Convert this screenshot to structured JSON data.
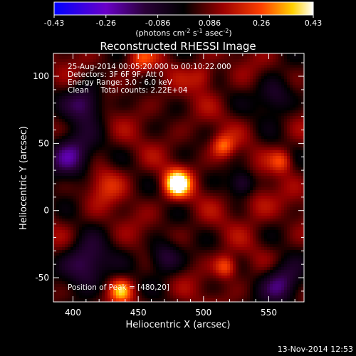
{
  "chart_data": {
    "type": "heatmap",
    "title": "Reconstructed RHESSI Image",
    "xlabel": "Heliocentric X (arcsec)",
    "ylabel": "Heliocentric Y (arcsec)",
    "xlim": [
      385,
      577
    ],
    "ylim": [
      -68,
      117
    ],
    "x_ticks": [
      400,
      450,
      500,
      550
    ],
    "y_ticks": [
      -50,
      0,
      50,
      100
    ],
    "colorbar": {
      "min": -0.43,
      "max": 0.43,
      "ticks": [
        "-0.43",
        "-0.26",
        "-0.086",
        "0.086",
        "0.26",
        "0.43"
      ],
      "label_parts": [
        "(photons cm",
        "-2",
        " s",
        "-1",
        " asec",
        "-2",
        ")"
      ]
    },
    "info_lines": [
      "25-Aug-2014 00:05:20.000 to 00:10:22.000",
      "Detectors: 3F 6F 9F, Att 0",
      "Energy Range: 3.0 - 6.0 keV",
      "Clean     Total counts: 2.22E+04"
    ],
    "peak_label": "Position of Peak = [480,20]",
    "peak": {
      "x": 480,
      "y": 20,
      "value": 0.43
    },
    "sources": [
      {
        "x": 480,
        "y": 20,
        "amp": 0.43,
        "sigma": 7
      },
      {
        "x": 515,
        "y": 48,
        "amp": 0.2,
        "sigma": 6
      },
      {
        "x": 560,
        "y": 37,
        "amp": 0.18,
        "sigma": 6
      },
      {
        "x": 517,
        "y": -42,
        "amp": 0.22,
        "sigma": 6
      },
      {
        "x": 437,
        "y": -60,
        "amp": 0.24,
        "sigma": 6
      },
      {
        "x": 452,
        "y": 112,
        "amp": 0.15,
        "sigma": 7
      },
      {
        "x": 500,
        "y": 100,
        "amp": 0.14,
        "sigma": 7
      },
      {
        "x": 425,
        "y": 20,
        "amp": 0.12,
        "sigma": 10
      },
      {
        "x": 540,
        "y": 5,
        "amp": 0.1,
        "sigma": 10
      },
      {
        "x": 398,
        "y": 40,
        "amp": -0.3,
        "sigma": 12
      },
      {
        "x": 410,
        "y": 80,
        "amp": -0.25,
        "sigma": 10
      },
      {
        "x": 410,
        "y": -40,
        "amp": -0.28,
        "sigma": 12
      },
      {
        "x": 470,
        "y": -35,
        "amp": -0.22,
        "sigma": 9
      },
      {
        "x": 560,
        "y": -55,
        "amp": -0.28,
        "sigma": 11
      },
      {
        "x": 530,
        "y": 20,
        "amp": -0.2,
        "sigma": 7
      },
      {
        "x": 555,
        "y": 85,
        "amp": -0.2,
        "sigma": 10
      }
    ]
  },
  "footer": {
    "timestamp": "13-Nov-2014 12:53"
  }
}
